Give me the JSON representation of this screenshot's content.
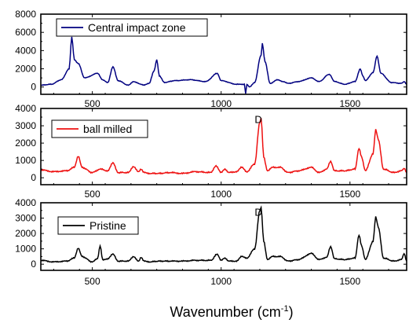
{
  "chart_data": [
    {
      "type": "line",
      "legend_label": "Central impact zone",
      "color": "#000080",
      "xlim": [
        300,
        1720
      ],
      "ylim": [
        -800,
        8000
      ],
      "yticks": [
        "0",
        "2000",
        "4000",
        "6000",
        "8000"
      ],
      "yticks_values": [
        0,
        2000,
        4000,
        6000,
        8000
      ],
      "xticks": [
        "500",
        "1000",
        "1500"
      ],
      "xticks_values": [
        500,
        1000,
        1500
      ],
      "annotation": "",
      "baseline": 400,
      "x": [
        300,
        340,
        380,
        410,
        420,
        430,
        445,
        470,
        520,
        540,
        560,
        580,
        600,
        640,
        660,
        690,
        700,
        720,
        740,
        750,
        760,
        780,
        820,
        880,
        940,
        985,
        1000,
        1060,
        1090,
        1095,
        1100,
        1110,
        1130,
        1155,
        1160,
        1170,
        1190,
        1220,
        1240,
        1260,
        1300,
        1350,
        1380,
        1420,
        1440,
        1480,
        1520,
        1540,
        1550,
        1560,
        1590,
        1605,
        1620,
        1660,
        1700,
        1710,
        1720
      ],
      "y": [
        200,
        300,
        800,
        2000,
        5500,
        3000,
        2600,
        1000,
        1500,
        800,
        500,
        2200,
        700,
        200,
        600,
        300,
        200,
        400,
        1800,
        3000,
        1200,
        500,
        700,
        800,
        600,
        1500,
        700,
        300,
        300,
        -700,
        300,
        0,
        500,
        3500,
        4800,
        2800,
        400,
        800,
        600,
        400,
        600,
        1000,
        600,
        1400,
        600,
        300,
        600,
        2000,
        1200,
        700,
        1600,
        3400,
        1500,
        500,
        400,
        600,
        300
      ]
    },
    {
      "type": "line",
      "legend_label": "ball milled",
      "color": "#ee1010",
      "xlim": [
        300,
        1720
      ],
      "ylim": [
        -400,
        4000
      ],
      "yticks": [
        "0",
        "1000",
        "2000",
        "3000",
        "4000"
      ],
      "yticks_values": [
        0,
        1000,
        2000,
        3000,
        4000
      ],
      "xticks": [
        "500",
        "1000",
        "1500"
      ],
      "xticks_values": [
        500,
        1000,
        1500
      ],
      "annotation": "D",
      "annotation_at": [
        1130,
        3150
      ],
      "baseline": 300,
      "x": [
        300,
        350,
        400,
        430,
        445,
        460,
        500,
        530,
        560,
        580,
        600,
        640,
        660,
        680,
        690,
        700,
        720,
        760,
        800,
        850,
        900,
        960,
        980,
        1000,
        1015,
        1030,
        1060,
        1080,
        1100,
        1130,
        1150,
        1155,
        1165,
        1180,
        1200,
        1230,
        1260,
        1300,
        1350,
        1380,
        1410,
        1425,
        1440,
        1480,
        1520,
        1535,
        1545,
        1560,
        1590,
        1600,
        1610,
        1630,
        1670,
        1700,
        1710,
        1720
      ],
      "y": [
        450,
        350,
        400,
        600,
        1250,
        600,
        300,
        500,
        400,
        850,
        300,
        300,
        650,
        350,
        500,
        300,
        250,
        250,
        300,
        250,
        350,
        300,
        700,
        300,
        500,
        300,
        350,
        600,
        350,
        800,
        3200,
        3450,
        1200,
        400,
        600,
        600,
        300,
        400,
        600,
        300,
        500,
        950,
        400,
        400,
        500,
        1700,
        1200,
        400,
        1400,
        2800,
        2200,
        500,
        300,
        400,
        550,
        300
      ]
    },
    {
      "type": "line",
      "legend_label": "Pristine",
      "color": "#000000",
      "xlim": [
        300,
        1720
      ],
      "ylim": [
        -400,
        4000
      ],
      "yticks": [
        "0",
        "1000",
        "2000",
        "3000",
        "4000"
      ],
      "yticks_values": [
        0,
        1000,
        2000,
        3000,
        4000
      ],
      "xticks": [
        "500",
        "1000",
        "1500"
      ],
      "xticks_values": [
        500,
        1000,
        1500
      ],
      "xticks_labels_visible": true,
      "annotation": "D",
      "annotation_at": [
        1130,
        3150
      ],
      "baseline": 150,
      "x": [
        300,
        350,
        400,
        430,
        445,
        460,
        500,
        520,
        530,
        540,
        560,
        580,
        600,
        640,
        660,
        680,
        690,
        700,
        720,
        760,
        800,
        850,
        900,
        960,
        985,
        1000,
        1015,
        1030,
        1060,
        1080,
        1100,
        1130,
        1150,
        1155,
        1165,
        1180,
        1200,
        1230,
        1260,
        1300,
        1350,
        1380,
        1410,
        1425,
        1440,
        1480,
        1520,
        1535,
        1545,
        1560,
        1590,
        1600,
        1610,
        1630,
        1670,
        1700,
        1710,
        1720
      ],
      "y": [
        250,
        150,
        200,
        400,
        1050,
        500,
        150,
        350,
        1200,
        300,
        350,
        650,
        200,
        200,
        500,
        200,
        450,
        200,
        150,
        200,
        200,
        200,
        250,
        250,
        650,
        250,
        400,
        200,
        200,
        500,
        400,
        1000,
        3500,
        3700,
        1500,
        300,
        500,
        500,
        200,
        300,
        700,
        300,
        450,
        1150,
        350,
        300,
        400,
        1900,
        1200,
        300,
        1500,
        3100,
        2400,
        400,
        200,
        300,
        700,
        200
      ]
    }
  ],
  "xlabel": "Wavenumber (cm",
  "xlabel_sup": "-1",
  "xlabel_close": ")"
}
